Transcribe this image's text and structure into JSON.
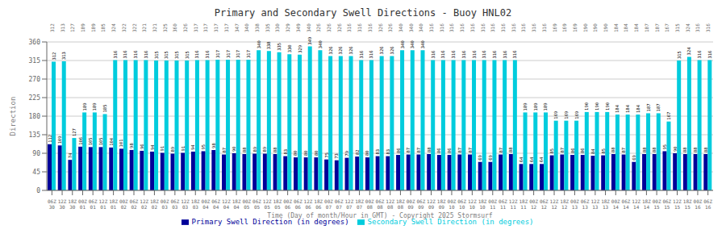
{
  "chart_data": {
    "type": "bar",
    "title": "Primary and Secondary Swell Directions - Buoy HNL02",
    "x_label": "Time (Day of month/Hour in GMT) - Copyright 2025 Stormsurf",
    "y_label": "Direction",
    "categories": [
      "06Z\n30",
      "12Z\n30",
      "18Z\n30",
      "00Z\n01",
      "06Z\n01",
      "12Z\n01",
      "18Z\n01",
      "00Z\n02",
      "06Z\n02",
      "12Z\n02",
      "18Z\n02",
      "00Z\n03",
      "06Z\n03",
      "12Z\n03",
      "18Z\n03",
      "00Z\n04",
      "06Z\n04",
      "12Z\n04",
      "18Z\n04",
      "00Z\n05",
      "06Z\n05",
      "12Z\n05",
      "18Z\n05",
      "00Z\n06",
      "06Z\n06",
      "12Z\n06",
      "18Z\n06",
      "00Z\n07",
      "06Z\n07",
      "12Z\n07",
      "18Z\n07",
      "00Z\n08",
      "06Z\n08",
      "12Z\n08",
      "18Z\n08",
      "00Z\n09",
      "06Z\n09",
      "12Z\n09",
      "18Z\n09",
      "00Z\n10",
      "06Z\n10",
      "12Z\n10",
      "18Z\n10",
      "00Z\n11",
      "06Z\n11",
      "12Z\n11",
      "18Z\n11",
      "00Z\n12",
      "06Z\n12",
      "12Z\n12",
      "18Z\n12",
      "00Z\n13",
      "06Z\n13",
      "12Z\n13",
      "18Z\n13",
      "00Z\n14",
      "06Z\n14",
      "12Z\n14",
      "18Z\n14",
      "00Z\n15",
      "06Z\n15",
      "12Z\n15",
      "18Z\n15",
      "00Z\n16",
      "06Z\n16"
    ],
    "series": [
      {
        "name": "Primary Swell Direction (in degrees)",
        "color": "#000099",
        "values": [
          112,
          109,
          74,
          106,
          105,
          105,
          104,
          101,
          98,
          96,
          94,
          91,
          89,
          91,
          94,
          95,
          98,
          87,
          90,
          88,
          89,
          89,
          88,
          83,
          80,
          80,
          80,
          75,
          73,
          79,
          82,
          80,
          83,
          83,
          86,
          87,
          87,
          88,
          86,
          86,
          87,
          87,
          69,
          69,
          87,
          88,
          64,
          64,
          64,
          85,
          87,
          86,
          86,
          84,
          85,
          88,
          87,
          69,
          88,
          88,
          95,
          90,
          88,
          88,
          88
        ]
      },
      {
        "name": "Secondary Swell Direction (in degrees)",
        "color": "#00CCDD",
        "values": [
          312,
          313,
          127,
          189,
          189,
          185,
          316,
          316,
          316,
          316,
          315,
          315,
          315,
          315,
          316,
          316,
          317,
          317,
          317,
          317,
          340,
          338,
          335,
          330,
          329,
          349,
          340,
          326,
          326,
          326,
          316,
          316,
          326,
          326,
          340,
          340,
          340,
          316,
          316,
          316,
          316,
          316,
          316,
          316,
          316,
          316,
          189,
          189,
          189,
          169,
          169,
          169,
          190,
          190,
          190,
          184,
          184,
          184,
          187,
          187,
          167,
          315,
          324,
          316,
          316
        ]
      }
    ],
    "top_axis_labels": [
      312,
      313,
      127,
      189,
      189,
      185,
      324,
      322,
      322,
      321,
      321,
      325,
      360,
      326,
      317,
      317,
      317,
      317,
      347,
      340,
      338,
      335,
      330,
      329,
      349,
      340,
      326,
      326,
      326,
      316,
      316,
      316,
      326,
      326,
      340,
      340,
      340,
      316,
      316,
      316,
      316,
      316,
      316,
      316,
      316,
      316,
      316,
      316,
      316,
      169,
      169,
      169,
      190,
      190,
      190,
      184,
      184,
      184,
      187,
      187,
      167,
      315,
      324,
      316,
      316
    ],
    "ylim": [
      0,
      360
    ],
    "yticks": [
      0,
      45,
      90,
      135,
      180,
      225,
      270,
      315,
      360
    ],
    "grid": true,
    "legend": "bottom",
    "data_labels": true
  }
}
